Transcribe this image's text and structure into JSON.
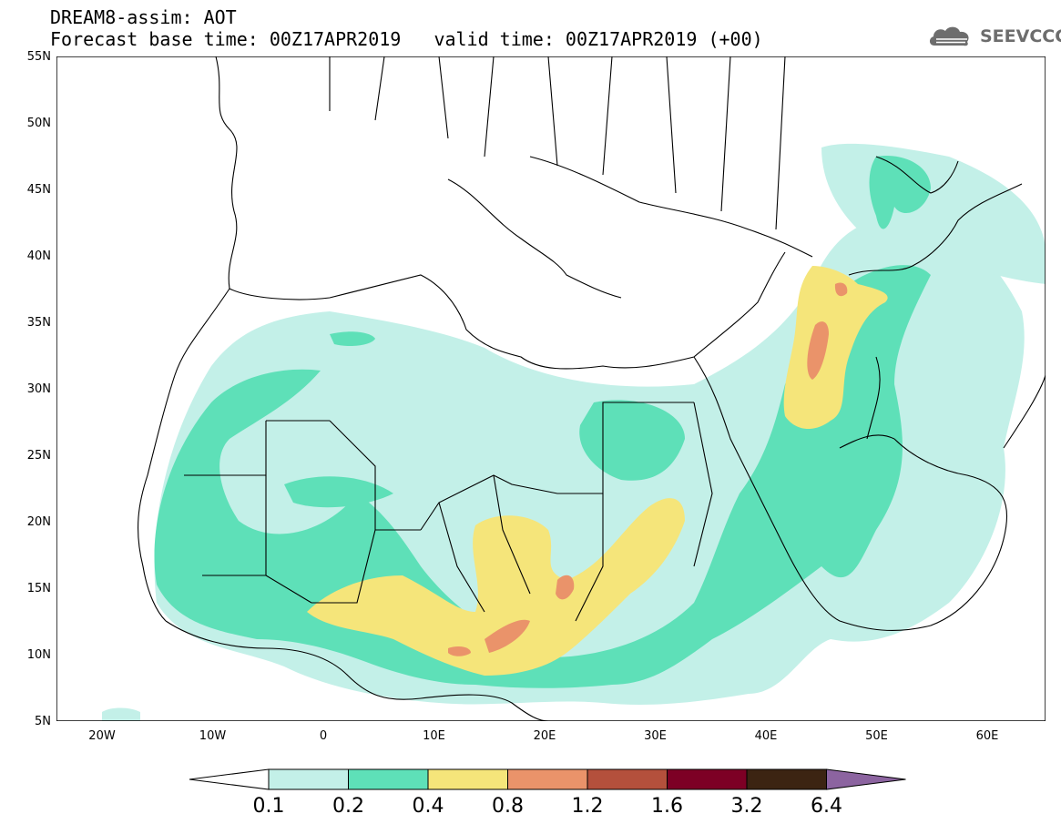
{
  "header": {
    "title_line1": "DREAM8-assim: AOT",
    "base_time": "Forecast base time: 00Z17APR2019",
    "valid_time": "valid time: 00Z17APR2019 (+00)"
  },
  "brand": {
    "name": "SEEVCCC",
    "icon": "cloud-logo-icon"
  },
  "map": {
    "lat_labels": [
      "55N",
      "50N",
      "45N",
      "40N",
      "35N",
      "30N",
      "25N",
      "20N",
      "15N",
      "10N",
      "5N"
    ],
    "lon_labels": [
      "20W",
      "10W",
      "0",
      "10E",
      "20E",
      "30E",
      "40E",
      "50E",
      "60E"
    ],
    "colors": {
      "c01": "#c3f0e8",
      "c02": "#5ee0b8",
      "c04": "#f5e57a",
      "c08": "#ea936a",
      "coast": "#000000"
    }
  },
  "colorbar": {
    "labels": [
      "0.1",
      "0.2",
      "0.4",
      "0.8",
      "1.2",
      "1.6",
      "3.2",
      "6.4"
    ],
    "colors": [
      "#ffffff",
      "#c3f0e8",
      "#5ee0b8",
      "#f5e57a",
      "#ea936a",
      "#b4503c",
      "#7d0025",
      "#3c2412",
      "#8c64a0"
    ]
  }
}
